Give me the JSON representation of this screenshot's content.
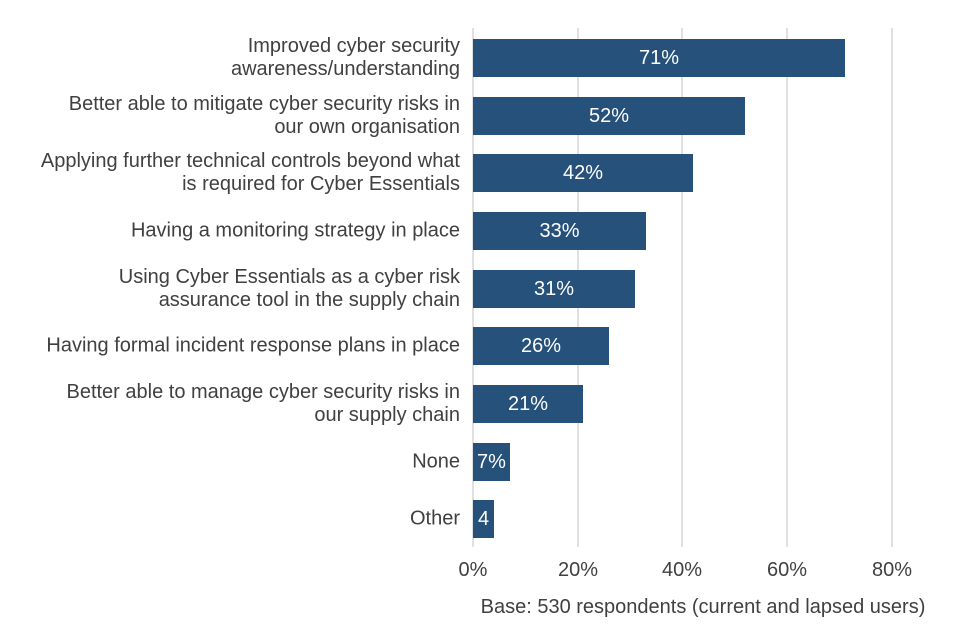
{
  "chart_data": {
    "type": "bar",
    "orientation": "horizontal",
    "title": "",
    "xlabel": "",
    "ylabel": "",
    "categories": [
      "Improved cyber security awareness/understanding",
      "Better able to mitigate cyber security risks in our own organisation",
      "Applying further technical controls beyond what is required for Cyber Essentials",
      "Having a monitoring strategy in place",
      "Using Cyber Essentials as a cyber risk assurance tool in the supply chain",
      "Having formal incident response plans in place",
      "Better able to manage cyber security risks in our supply chain",
      "None",
      "Other"
    ],
    "label_lines": [
      [
        "Improved cyber security",
        "awareness/understanding"
      ],
      [
        "Better able to mitigate cyber security risks in",
        "our own organisation"
      ],
      [
        "Applying further technical controls beyond what",
        "is required for Cyber Essentials"
      ],
      [
        "Having a monitoring strategy in place"
      ],
      [
        "Using Cyber Essentials as a cyber risk",
        "assurance tool in the supply chain"
      ],
      [
        "Having formal incident response plans in place"
      ],
      [
        "Better able to manage cyber security risks in",
        "our supply chain"
      ],
      [
        "None"
      ],
      [
        "Other"
      ]
    ],
    "values": [
      71,
      52,
      42,
      33,
      31,
      26,
      21,
      7,
      4
    ],
    "bar_labels": [
      "71%",
      "52%",
      "42%",
      "33%",
      "31%",
      "26%",
      "21%",
      "7%",
      "4"
    ],
    "x_ticks": {
      "values": [
        0,
        20,
        40,
        60,
        80
      ],
      "labels": [
        "0%",
        "20%",
        "40%",
        "60%",
        "80%"
      ]
    },
    "xlim": [
      0,
      85.35
    ],
    "grid": "vertical",
    "legend": "none",
    "note": "Base: 530 respondents (current and lapsed users)",
    "colors": {
      "bar": "#25517a",
      "grid": "#e0e0e0",
      "text": "#404040",
      "value_text": "#ffffff",
      "background": "#ffffff"
    }
  }
}
